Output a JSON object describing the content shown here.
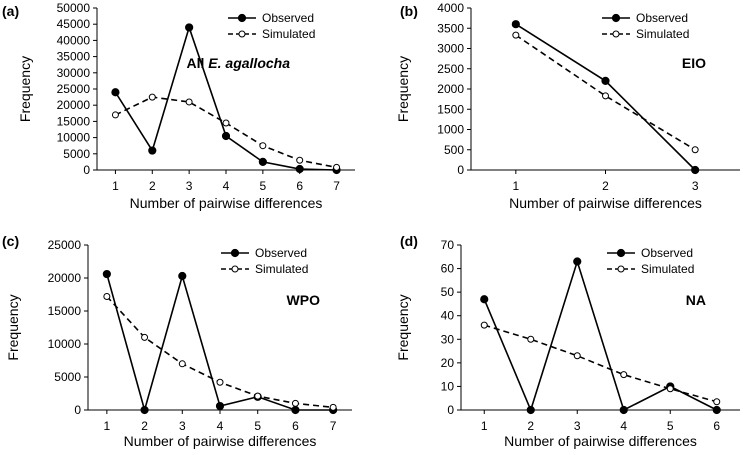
{
  "chart_data": [
    {
      "type": "line",
      "panel_label": "(a)",
      "annotation_prefix": "All ",
      "annotation_italic": "E. agallocha",
      "xlabel": "Number of pairwise differences",
      "ylabel": "Frequency",
      "categories": [
        1,
        2,
        3,
        4,
        5,
        6,
        7
      ],
      "ylim": [
        0,
        50000
      ],
      "yticks": [
        0,
        5000,
        10000,
        15000,
        20000,
        25000,
        30000,
        35000,
        40000,
        45000,
        50000
      ],
      "legend_position": "top-right",
      "series": [
        {
          "name": "Observed",
          "style": "solid",
          "marker": "filled",
          "values": [
            24000,
            6000,
            44000,
            10500,
            2500,
            300,
            0
          ]
        },
        {
          "name": "Simulated",
          "style": "dashed",
          "marker": "open",
          "values": [
            17000,
            22500,
            21000,
            14500,
            7500,
            3000,
            800
          ]
        }
      ]
    },
    {
      "type": "line",
      "panel_label": "(b)",
      "annotation_prefix": "EIO",
      "annotation_italic": "",
      "xlabel": "Number of pairwise differences",
      "ylabel": "Frequency",
      "categories": [
        1,
        2,
        3
      ],
      "ylim": [
        0,
        4000
      ],
      "yticks": [
        0,
        500,
        1000,
        1500,
        2000,
        2500,
        3000,
        3500,
        4000
      ],
      "legend_position": "top-right",
      "series": [
        {
          "name": "Observed",
          "style": "solid",
          "marker": "filled",
          "values": [
            3600,
            2200,
            0
          ]
        },
        {
          "name": "Simulated",
          "style": "dashed",
          "marker": "open",
          "values": [
            3330,
            1830,
            500
          ]
        }
      ]
    },
    {
      "type": "line",
      "panel_label": "(c)",
      "annotation_prefix": "WPO",
      "annotation_italic": "",
      "xlabel": "Number of pairwise differences",
      "ylabel": "Frequency",
      "categories": [
        1,
        2,
        3,
        4,
        5,
        6,
        7
      ],
      "ylim": [
        0,
        25000
      ],
      "yticks": [
        0,
        5000,
        10000,
        15000,
        20000,
        25000
      ],
      "legend_position": "top-right",
      "series": [
        {
          "name": "Observed",
          "style": "solid",
          "marker": "filled",
          "values": [
            20600,
            0,
            20300,
            600,
            2000,
            0,
            0
          ]
        },
        {
          "name": "Simulated",
          "style": "dashed",
          "marker": "open",
          "values": [
            17200,
            11000,
            7000,
            4200,
            2100,
            1000,
            400
          ]
        }
      ]
    },
    {
      "type": "line",
      "panel_label": "(d)",
      "annotation_prefix": "NA",
      "annotation_italic": "",
      "xlabel": "Number of pairwise differences",
      "ylabel": "Frequency",
      "categories": [
        1,
        2,
        3,
        4,
        5,
        6
      ],
      "ylim": [
        0,
        70
      ],
      "yticks": [
        0,
        10,
        20,
        30,
        40,
        50,
        60,
        70
      ],
      "legend_position": "top-right",
      "series": [
        {
          "name": "Observed",
          "style": "solid",
          "marker": "filled",
          "values": [
            47,
            0,
            63,
            0,
            10,
            0
          ]
        },
        {
          "name": "Simulated",
          "style": "dashed",
          "marker": "open",
          "values": [
            36,
            30,
            23,
            15,
            9,
            3.5
          ]
        }
      ]
    }
  ]
}
